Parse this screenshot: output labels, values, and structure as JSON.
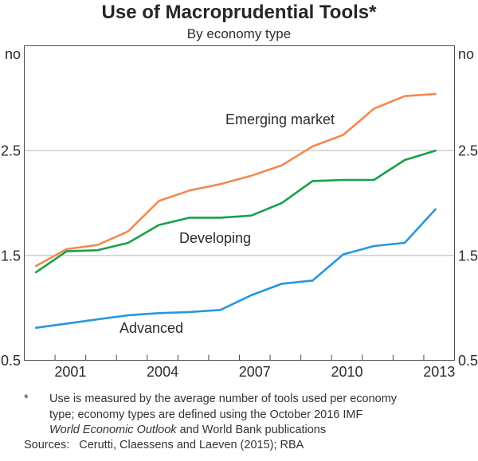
{
  "title": "Use of Macroprudential Tools*",
  "subtitle": "By economy type",
  "axis": {
    "unit_left": "no",
    "unit_right": "no",
    "grid_color": "#b3b3b3",
    "axis_color": "#4d4d4d",
    "label_color": "#2d2d2d"
  },
  "chart_data": {
    "type": "line",
    "title": "Use of Macroprudential Tools*",
    "subtitle": "By economy type",
    "ylabel": "no",
    "ylim": [
      0.5,
      3.5
    ],
    "yticks": [
      0.5,
      1.5,
      2.5
    ],
    "gridlines": [
      1.5,
      2.5
    ],
    "xlim": [
      2000,
      2014
    ],
    "xticks_every_year": true,
    "xtick_years_labeled": [
      2001,
      2004,
      2007,
      2010,
      2013
    ],
    "legend_position": "inline-annotations",
    "x": [
      2000,
      2001,
      2002,
      2003,
      2004,
      2005,
      2006,
      2007,
      2008,
      2009,
      2010,
      2011,
      2012,
      2013
    ],
    "series": [
      {
        "name": "Emerging market",
        "color": "#f6874e",
        "values": [
          1.4,
          1.56,
          1.6,
          1.73,
          2.02,
          2.12,
          2.18,
          2.26,
          2.36,
          2.54,
          2.65,
          2.9,
          3.02,
          3.04
        ]
      },
      {
        "name": "Developing",
        "color": "#16a14a",
        "values": [
          1.34,
          1.54,
          1.55,
          1.62,
          1.79,
          1.86,
          1.86,
          1.88,
          2.0,
          2.21,
          2.22,
          2.22,
          2.41,
          2.5
        ]
      },
      {
        "name": "Advanced",
        "color": "#2598dd",
        "values": [
          0.81,
          0.85,
          0.89,
          0.93,
          0.95,
          0.96,
          0.98,
          1.12,
          1.23,
          1.26,
          1.51,
          1.59,
          1.62,
          1.94
        ]
      }
    ]
  },
  "footnote": {
    "marker": "*",
    "lines": [
      "Use is measured by the average number of tools used per economy",
      "type; economy types are defined using the October 2016 IMF"
    ],
    "line3_italic": "World Economic Outlook",
    "line3_rest": " and World Bank publications"
  },
  "sources": {
    "label": "Sources:",
    "text": "Cerutti, Claessens and Laeven (2015); RBA"
  }
}
